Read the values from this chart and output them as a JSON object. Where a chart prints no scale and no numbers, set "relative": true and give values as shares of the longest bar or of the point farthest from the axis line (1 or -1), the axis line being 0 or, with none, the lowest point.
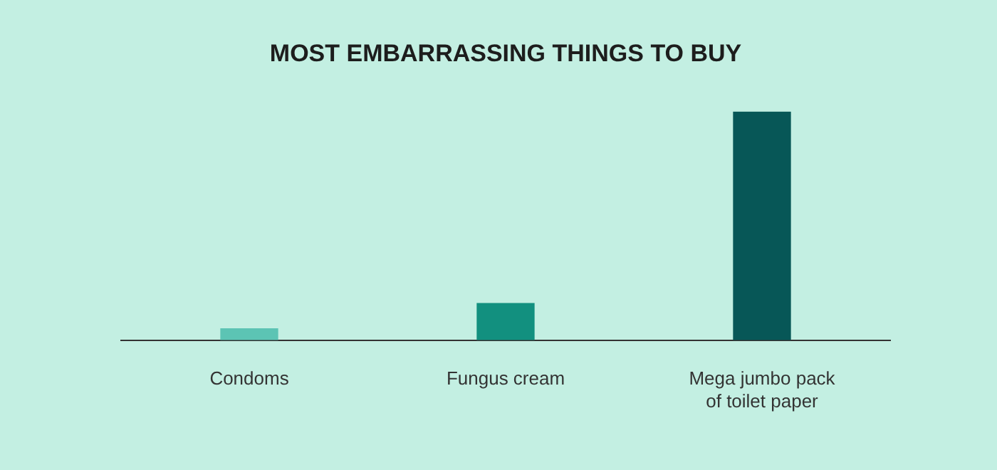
{
  "chart_data": {
    "type": "bar",
    "title": "MOST EMBARRASSING THINGS TO BUY",
    "relative": true,
    "categories": [
      "Condoms",
      "Fungus cream",
      "Mega jumbo pack of toilet paper"
    ],
    "values": [
      0.05,
      0.16,
      1
    ],
    "colors": [
      "#5cc4b4",
      "#12907f",
      "#075757"
    ],
    "grid": false,
    "legend": false
  }
}
